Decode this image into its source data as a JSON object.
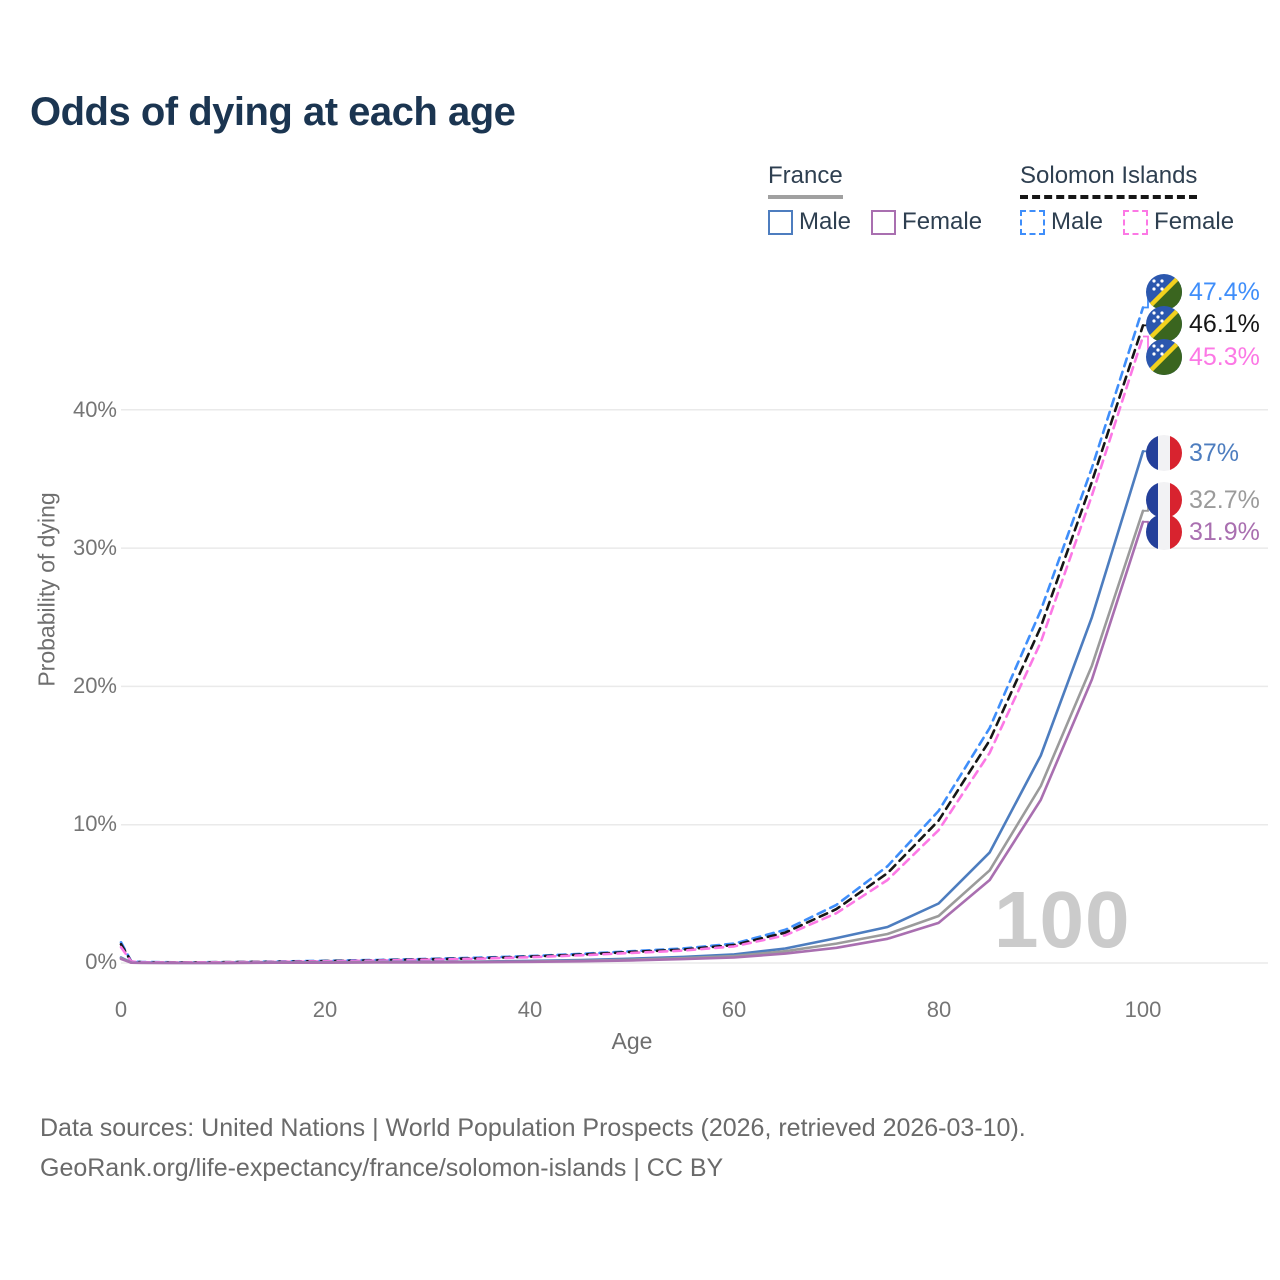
{
  "title": "Odds of dying at each age",
  "watermark": "100",
  "legend": {
    "groups": [
      {
        "country": "France",
        "line_style": "solid",
        "underline_color": "#a0a0a0",
        "items": [
          {
            "label": "Male",
            "color": "#4d7dbf"
          },
          {
            "label": "Female",
            "color": "#a96fb0"
          }
        ]
      },
      {
        "country": "Solomon Islands",
        "line_style": "dashed",
        "underline_color": "#161616",
        "items": [
          {
            "label": "Male",
            "color": "#3f8efa"
          },
          {
            "label": "Female",
            "color": "#fc78e5"
          }
        ]
      }
    ]
  },
  "chart_data": {
    "type": "line",
    "title": "Odds of dying at each age",
    "xlabel": "Age",
    "ylabel": "Probability of dying",
    "xlim": [
      0,
      100
    ],
    "ylim": [
      0,
      47.5
    ],
    "grid": "horizontal",
    "x_tick_values": [
      0,
      20,
      40,
      60,
      80,
      100
    ],
    "x_tick_labels": [
      "0",
      "20",
      "40",
      "60",
      "80",
      "100"
    ],
    "y_tick_values": [
      0,
      10,
      20,
      30,
      40
    ],
    "y_tick_labels": [
      "0%",
      "10%",
      "20%",
      "30%",
      "40%"
    ],
    "x": [
      0,
      1,
      2,
      5,
      10,
      15,
      20,
      25,
      30,
      35,
      40,
      45,
      50,
      55,
      60,
      65,
      70,
      75,
      80,
      85,
      90,
      95,
      100
    ],
    "series": [
      {
        "id": "solomon-islands-male",
        "name": "Solomon Islands — Male",
        "country": "Solomon Islands",
        "sex": "Male",
        "color": "#3f8efa",
        "dash": true,
        "flag": "solomon-islands",
        "end_label": "47.4%",
        "values": [
          1.5,
          0.12,
          0.07,
          0.05,
          0.06,
          0.1,
          0.16,
          0.22,
          0.3,
          0.38,
          0.5,
          0.66,
          0.85,
          1.05,
          1.4,
          2.4,
          4.2,
          7.0,
          11.0,
          17.0,
          25.5,
          35.8,
          47.4
        ]
      },
      {
        "id": "solomon-islands-both",
        "name": "Solomon Islands — Both sexes",
        "country": "Solomon Islands",
        "sex": "Both",
        "color": "#161616",
        "dash": true,
        "flag": "solomon-islands",
        "end_label": "46.1%",
        "values": [
          1.35,
          0.11,
          0.06,
          0.045,
          0.055,
          0.09,
          0.14,
          0.19,
          0.27,
          0.34,
          0.46,
          0.61,
          0.8,
          0.97,
          1.3,
          2.2,
          3.9,
          6.5,
          10.3,
          16.1,
          24.3,
          34.8,
          46.1
        ]
      },
      {
        "id": "solomon-islands-female",
        "name": "Solomon Islands — Female",
        "country": "Solomon Islands",
        "sex": "Female",
        "color": "#fc78e5",
        "dash": true,
        "flag": "solomon-islands",
        "end_label": "45.3%",
        "values": [
          1.15,
          0.1,
          0.06,
          0.04,
          0.05,
          0.08,
          0.12,
          0.17,
          0.24,
          0.31,
          0.42,
          0.56,
          0.73,
          0.9,
          1.2,
          2.0,
          3.6,
          6.0,
          9.6,
          15.2,
          23.2,
          33.8,
          45.3
        ]
      },
      {
        "id": "france-male",
        "name": "France — Male",
        "country": "France",
        "sex": "Male",
        "color": "#4d7dbf",
        "dash": false,
        "flag": "france",
        "end_label": "37%",
        "values": [
          0.4,
          0.03,
          0.02,
          0.015,
          0.015,
          0.035,
          0.055,
          0.07,
          0.085,
          0.11,
          0.15,
          0.21,
          0.31,
          0.44,
          0.62,
          1.05,
          1.8,
          2.6,
          4.3,
          8.0,
          15.0,
          25.0,
          37.0
        ]
      },
      {
        "id": "france-both",
        "name": "France — Both sexes",
        "country": "France",
        "sex": "Both",
        "color": "#9b9b9b",
        "dash": false,
        "flag": "france",
        "end_label": "32.7%",
        "values": [
          0.35,
          0.025,
          0.015,
          0.012,
          0.012,
          0.028,
          0.04,
          0.055,
          0.065,
          0.085,
          0.11,
          0.16,
          0.24,
          0.35,
          0.5,
          0.85,
          1.4,
          2.1,
          3.4,
          6.7,
          12.8,
          21.5,
          32.7
        ]
      },
      {
        "id": "france-female",
        "name": "France — Female",
        "country": "France",
        "sex": "Female",
        "color": "#a96fb0",
        "dash": false,
        "flag": "france",
        "end_label": "31.9%",
        "values": [
          0.3,
          0.02,
          0.012,
          0.01,
          0.01,
          0.02,
          0.025,
          0.035,
          0.045,
          0.06,
          0.085,
          0.12,
          0.19,
          0.28,
          0.4,
          0.68,
          1.1,
          1.75,
          2.9,
          6.0,
          11.8,
          20.5,
          31.9
        ]
      }
    ]
  },
  "footer": {
    "line1": "Data sources: United Nations | World Population Prospects (2026, retrieved 2026-03-10).",
    "line2": "GeoRank.org/life-expectancy/france/solomon-islands | CC BY"
  }
}
